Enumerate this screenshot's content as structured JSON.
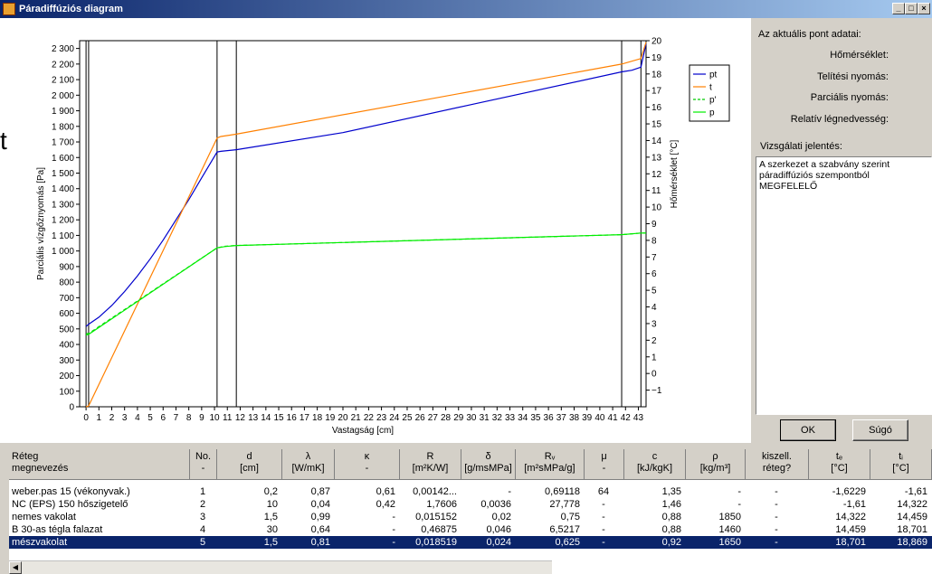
{
  "window": {
    "title": "Páradiffúziós diagram",
    "min_label": "_",
    "max_label": "□",
    "close_label": "×"
  },
  "side_panel": {
    "header": "Az aktuális pont adatai:",
    "labels": [
      "Hőmérséklet:",
      "Telítési nyomás:",
      "Parciális nyomás:",
      "Relatív légnedvesség:"
    ],
    "report_label": "Vizsgálati jelentés:",
    "report_text": "A szerkezet a szabvány szerint páradiffúziós szempontból MEGFELELŐ",
    "ok_label": "OK",
    "help_label": "Súgó"
  },
  "stray_text": "t",
  "chart_data": {
    "type": "line",
    "xlabel": "Vastagság [cm]",
    "ylabel": "Parciális vízgőznyomás [Pa]",
    "y2label": "Hőmérséklet [°C]",
    "xlim": [
      -0.5,
      43.6
    ],
    "ylim": [
      0,
      2350
    ],
    "y2lim": [
      -2,
      20
    ],
    "x_ticks": [
      0,
      1,
      2,
      3,
      4,
      5,
      6,
      7,
      8,
      9,
      10,
      11,
      12,
      13,
      14,
      15,
      16,
      17,
      18,
      19,
      20,
      21,
      22,
      23,
      24,
      25,
      26,
      27,
      28,
      29,
      30,
      31,
      32,
      33,
      34,
      35,
      36,
      37,
      38,
      39,
      40,
      41,
      42,
      43
    ],
    "y_ticks": [
      0,
      100,
      200,
      300,
      400,
      500,
      600,
      700,
      800,
      900,
      1000,
      1100,
      1200,
      1300,
      1400,
      1500,
      1600,
      1700,
      1800,
      1900,
      2000,
      2100,
      2200,
      2300
    ],
    "y_tick_labels": [
      "0",
      "100",
      "200",
      "300",
      "400",
      "500",
      "600",
      "700",
      "800",
      "900",
      "1 000",
      "1 100",
      "1 200",
      "1 300",
      "1 400",
      "1 500",
      "1 600",
      "1 700",
      "1 800",
      "1 900",
      "2 000",
      "2 100",
      "2 200",
      "2 300"
    ],
    "y2_ticks": [
      -1,
      0,
      1,
      2,
      3,
      4,
      5,
      6,
      7,
      8,
      9,
      10,
      11,
      12,
      13,
      14,
      15,
      16,
      17,
      18,
      19,
      20
    ],
    "y2_tick_labels": [
      "−1",
      "0",
      "1",
      "2",
      "3",
      "4",
      "5",
      "6",
      "7",
      "8",
      "9",
      "10",
      "11",
      "12",
      "13",
      "14",
      "15",
      "16",
      "17",
      "18",
      "19",
      "20"
    ],
    "layer_boundaries": [
      0,
      0.2,
      10.2,
      11.7,
      41.7,
      43.2
    ],
    "legend": [
      "pt",
      "t",
      "p'",
      "p"
    ],
    "series": [
      {
        "name": "pt",
        "color": "#0000cc",
        "dash": false,
        "x": [
          0,
          0.2,
          1,
          2,
          3,
          4,
          5,
          6,
          7,
          8,
          9,
          10.2,
          10.5,
          11.7,
          20,
          30,
          41.7,
          42.5,
          43.2,
          43.6
        ],
        "y": [
          515,
          530,
          575,
          650,
          740,
          840,
          950,
          1070,
          1200,
          1330,
          1470,
          1635,
          1640,
          1650,
          1760,
          1940,
          2150,
          2160,
          2180,
          2330
        ]
      },
      {
        "name": "t",
        "color": "#ff8000",
        "dash": false,
        "x": [
          0,
          0.2,
          10.2,
          10.5,
          11.7,
          41.7,
          43.2,
          43.6
        ],
        "y": [
          0,
          5,
          1725,
          1735,
          1750,
          2200,
          2235,
          2340
        ]
      },
      {
        "name": "p'",
        "color": "#00cc00",
        "dash": true,
        "x": [
          0,
          0.2,
          10.2,
          10.8,
          11.7,
          41.7,
          43.2,
          43.6
        ],
        "y": [
          470,
          470,
          1020,
          1030,
          1035,
          1105,
          1115,
          1115
        ]
      },
      {
        "name": "p",
        "color": "#00ee00",
        "dash": false,
        "x": [
          0,
          0.2,
          10.2,
          10.8,
          11.7,
          41.7,
          43.2,
          43.6
        ],
        "y": [
          460,
          465,
          1020,
          1028,
          1035,
          1105,
          1115,
          1115
        ]
      }
    ]
  },
  "table": {
    "headers": [
      {
        "l1": "Réteg",
        "l2": "megnevezés"
      },
      {
        "l1": "No.",
        "l2": "-"
      },
      {
        "l1": "d",
        "l2": "[cm]"
      },
      {
        "l1": "λ",
        "l2": "[W/mK]"
      },
      {
        "l1": "κ",
        "l2": "-"
      },
      {
        "l1": "R",
        "l2": "[m²K/W]"
      },
      {
        "l1": "δ",
        "l2": "[g/msMPa]"
      },
      {
        "l1": "Rᵥ",
        "l2": "[m²sMPa/g]"
      },
      {
        "l1": "μ",
        "l2": "-"
      },
      {
        "l1": "c",
        "l2": "[kJ/kgK]"
      },
      {
        "l1": "ρ",
        "l2": "[kg/m³]"
      },
      {
        "l1": "kiszell.",
        "l2": "réteg?"
      },
      {
        "l1": "tₑ",
        "l2": "[°C]"
      },
      {
        "l1": "tᵢ",
        "l2": "[°C]"
      }
    ],
    "rows": [
      [
        "weber.pas 15 (vékonyvak.)",
        "1",
        "0,2",
        "0,87",
        "0,61",
        "0,00142...",
        "-",
        "0,69118",
        "64",
        "1,35",
        "-",
        "-",
        "-1,6229",
        "-1,61"
      ],
      [
        "NC (EPS) 150 hőszigetelő",
        "2",
        "10",
        "0,04",
        "0,42",
        "1,7606",
        "0,0036",
        "27,778",
        "-",
        "1,46",
        "-",
        "-",
        "-1,61",
        "14,322"
      ],
      [
        "nemes vakolat",
        "3",
        "1,5",
        "0,99",
        "-",
        "0,015152",
        "0,02",
        "0,75",
        "-",
        "0,88",
        "1850",
        "-",
        "14,322",
        "14,459"
      ],
      [
        "B 30-as tégla falazat",
        "4",
        "30",
        "0,64",
        "-",
        "0,46875",
        "0,046",
        "6,5217",
        "-",
        "0,88",
        "1460",
        "-",
        "14,459",
        "18,701"
      ],
      [
        "mészvakolat",
        "5",
        "1,5",
        "0,81",
        "-",
        "0,018519",
        "0,024",
        "0,625",
        "-",
        "0,92",
        "1650",
        "-",
        "18,701",
        "18,869"
      ]
    ],
    "selected_row": 4
  }
}
